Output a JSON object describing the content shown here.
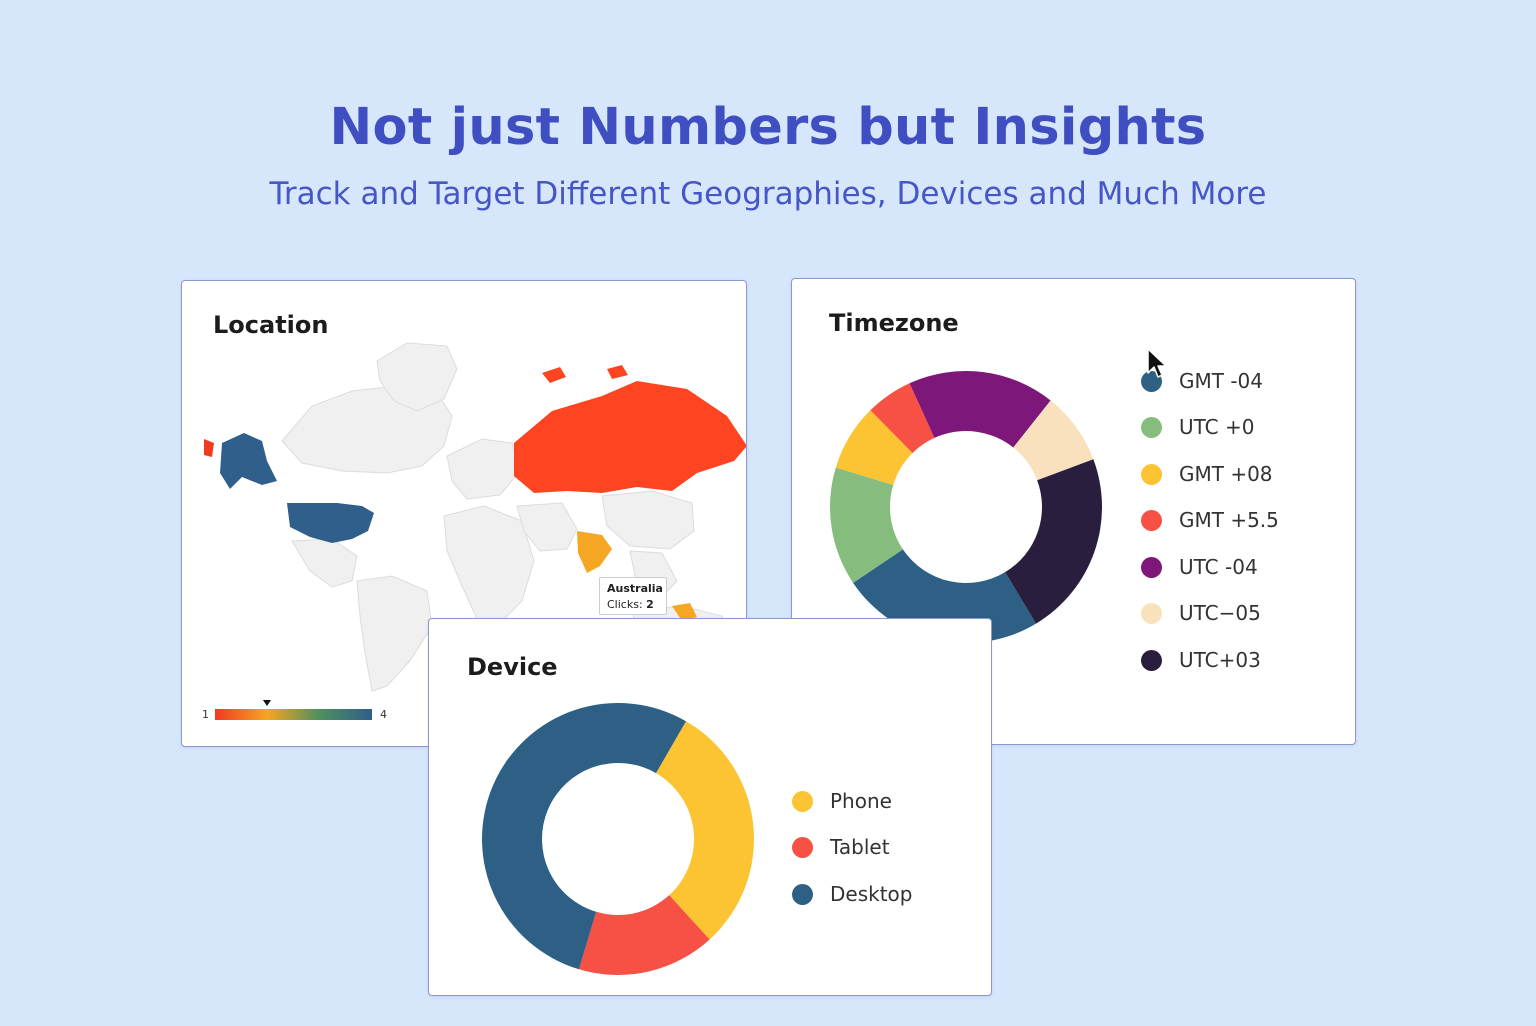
{
  "hero": {
    "title": "Not just Numbers but Insights",
    "subtitle": "Track and Target Different Geographies, Devices and Much More"
  },
  "location": {
    "title": "Location",
    "tooltip": {
      "country": "Australia",
      "label": "Clicks:",
      "value": "2"
    },
    "scale": {
      "min": "1",
      "max": "4",
      "colors": [
        "#f23a1f",
        "#f5a623",
        "#4e8f5e",
        "#2e5f8a"
      ]
    },
    "highlighted_regions": [
      {
        "name": "United States",
        "color": "#2f5f8a"
      },
      {
        "name": "Alaska",
        "color": "#2f5f8a"
      },
      {
        "name": "Russia",
        "color": "#ff4422"
      },
      {
        "name": "India",
        "color": "#f5a623"
      },
      {
        "name": "Australia",
        "color": "#f5a623"
      }
    ]
  },
  "timezone": {
    "title": "Timezone",
    "legend": [
      {
        "label": "GMT -04",
        "color": "#2e6086"
      },
      {
        "label": "UTC +0",
        "color": "#86bd7e"
      },
      {
        "label": "GMT +08",
        "color": "#fcc332"
      },
      {
        "label": "GMT +5.5",
        "color": "#f65144"
      },
      {
        "label": "UTC -04",
        "color": "#7d1779"
      },
      {
        "label": "UTC−05",
        "color": "#f9e1be"
      },
      {
        "label": "UTC+03",
        "color": "#2a1e3e"
      }
    ]
  },
  "device": {
    "title": "Device",
    "legend": [
      {
        "label": "Phone",
        "color": "#fcc332"
      },
      {
        "label": "Tablet",
        "color": "#f65144"
      },
      {
        "label": "Desktop",
        "color": "#2e6086"
      }
    ]
  },
  "chart_data": [
    {
      "type": "pie",
      "title": "Timezone",
      "categories": [
        "GMT -04",
        "UTC +0",
        "GMT +08",
        "GMT +5.5",
        "UTC -04",
        "UTC−05",
        "UTC+03"
      ],
      "values": [
        24.2,
        14.1,
        7.9,
        5.6,
        17.5,
        8.6,
        22.1
      ],
      "colors": [
        "#2e6086",
        "#86bd7e",
        "#fcc332",
        "#f65144",
        "#7d1779",
        "#f9e1be",
        "#2a1e3e"
      ]
    },
    {
      "type": "pie",
      "title": "Device",
      "categories": [
        "Phone",
        "Tablet",
        "Desktop"
      ],
      "values": [
        29.9,
        16.4,
        53.7
      ],
      "colors": [
        "#fcc332",
        "#f65144",
        "#2e6086"
      ]
    }
  ]
}
